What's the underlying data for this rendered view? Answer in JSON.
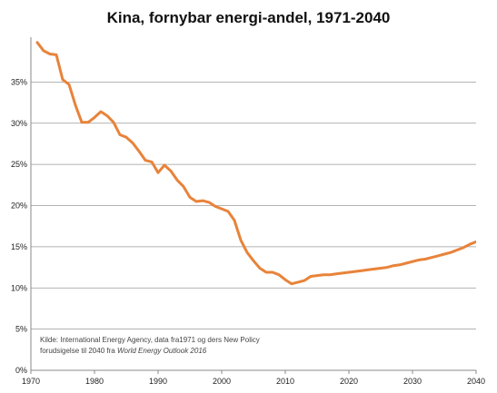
{
  "chart_data": {
    "type": "line",
    "title": "Kina, fornybar energi-andel, 1971-2040",
    "xlabel": "",
    "ylabel": "",
    "xlim": [
      1970,
      2040
    ],
    "ylim": [
      0,
      40
    ],
    "grid": true,
    "x_ticks": [
      "1970",
      "1980",
      "1990",
      "2000",
      "2010",
      "2020",
      "2030",
      "2040"
    ],
    "y_ticks": [
      "0%",
      "5%",
      "10%",
      "15%",
      "20%",
      "25%",
      "30%",
      "35%"
    ],
    "line_color": "#e8833a",
    "series": [
      {
        "x": [
          1971,
          1972,
          1973,
          1974,
          1975,
          1976,
          1977,
          1978,
          1979,
          1980,
          1981,
          1982,
          1983,
          1984,
          1985,
          1986,
          1987,
          1988,
          1989,
          1990,
          1991,
          1992,
          1993,
          1994,
          1995,
          1996,
          1997,
          1998,
          1999,
          2000,
          2001,
          2002,
          2003,
          2004,
          2005,
          2006,
          2007,
          2008,
          2009,
          2010,
          2011,
          2012,
          2013,
          2014,
          2015,
          2016,
          2017,
          2018,
          2019,
          2020,
          2021,
          2022,
          2023,
          2024,
          2025,
          2026,
          2027,
          2028,
          2029,
          2030,
          2031,
          2032,
          2033,
          2034,
          2035,
          2036,
          2037,
          2038,
          2039,
          2040
        ],
        "y": [
          39.8,
          38.8,
          38.4,
          38.3,
          35.3,
          34.7,
          32.2,
          30.1,
          30.1,
          30.7,
          31.4,
          30.9,
          30.1,
          28.6,
          28.3,
          27.6,
          26.6,
          25.5,
          25.3,
          24.0,
          24.9,
          24.2,
          23.1,
          22.3,
          21.0,
          20.5,
          20.6,
          20.4,
          19.9,
          19.6,
          19.3,
          18.2,
          15.8,
          14.3,
          13.3,
          12.4,
          11.9,
          11.9,
          11.6,
          11.0,
          10.5,
          10.7,
          10.9,
          11.4,
          11.5,
          11.6,
          11.6,
          11.7,
          11.8,
          11.9,
          12.0,
          12.1,
          12.2,
          12.3,
          12.4,
          12.5,
          12.7,
          12.8,
          13.0,
          13.2,
          13.4,
          13.5,
          13.7,
          13.9,
          14.1,
          14.3,
          14.6,
          14.9,
          15.3,
          15.6
        ]
      }
    ],
    "source_note": [
      "Kilde: International Energy Agency, data fra1971 og ders New Policy",
      "forudsigelse til 2040 fra ",
      "World Energy Outlook 2016"
    ]
  }
}
